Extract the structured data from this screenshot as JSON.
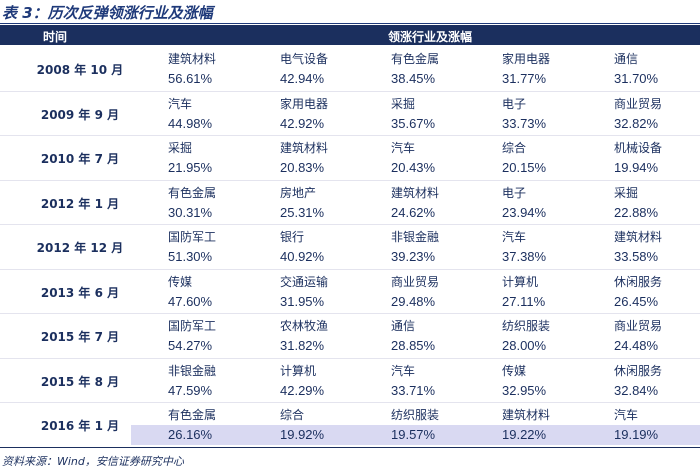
{
  "title": "表 3：历次反弹领涨行业及涨幅",
  "header": {
    "time": "时间",
    "leaders": "领涨行业及涨幅"
  },
  "rows": [
    {
      "date": "2008 年 10 月",
      "items": [
        {
          "name": "建筑材料",
          "value": "56.61%"
        },
        {
          "name": "电气设备",
          "value": "42.94%"
        },
        {
          "name": "有色金属",
          "value": "38.45%"
        },
        {
          "name": "家用电器",
          "value": "31.77%"
        },
        {
          "name": "通信",
          "value": "31.70%"
        }
      ]
    },
    {
      "date": "2009 年 9 月",
      "items": [
        {
          "name": "汽车",
          "value": "44.98%"
        },
        {
          "name": "家用电器",
          "value": "42.92%"
        },
        {
          "name": "采掘",
          "value": "35.67%"
        },
        {
          "name": "电子",
          "value": "33.73%"
        },
        {
          "name": "商业贸易",
          "value": "32.82%"
        }
      ]
    },
    {
      "date": "2010 年 7 月",
      "items": [
        {
          "name": "采掘",
          "value": "21.95%"
        },
        {
          "name": "建筑材料",
          "value": "20.83%"
        },
        {
          "name": "汽车",
          "value": "20.43%"
        },
        {
          "name": "综合",
          "value": "20.15%"
        },
        {
          "name": "机械设备",
          "value": "19.94%"
        }
      ]
    },
    {
      "date": "2012 年 1 月",
      "items": [
        {
          "name": "有色金属",
          "value": "30.31%"
        },
        {
          "name": "房地产",
          "value": "25.31%"
        },
        {
          "name": "建筑材料",
          "value": "24.62%"
        },
        {
          "name": "电子",
          "value": "23.94%"
        },
        {
          "name": "采掘",
          "value": "22.88%"
        }
      ]
    },
    {
      "date": "2012 年 12 月",
      "items": [
        {
          "name": "国防军工",
          "value": "51.30%"
        },
        {
          "name": "银行",
          "value": "40.92%"
        },
        {
          "name": "非银金融",
          "value": "39.23%"
        },
        {
          "name": "汽车",
          "value": "37.38%"
        },
        {
          "name": "建筑材料",
          "value": "33.58%"
        }
      ]
    },
    {
      "date": "2013 年 6 月",
      "items": [
        {
          "name": "传媒",
          "value": "47.60%"
        },
        {
          "name": "交通运输",
          "value": "31.95%"
        },
        {
          "name": "商业贸易",
          "value": "29.48%"
        },
        {
          "name": "计算机",
          "value": "27.11%"
        },
        {
          "name": "休闲服务",
          "value": "26.45%"
        }
      ]
    },
    {
      "date": "2015 年 7 月",
      "items": [
        {
          "name": "国防军工",
          "value": "54.27%"
        },
        {
          "name": "农林牧渔",
          "value": "31.82%"
        },
        {
          "name": "通信",
          "value": "28.85%"
        },
        {
          "name": "纺织服装",
          "value": "28.00%"
        },
        {
          "name": "商业贸易",
          "value": "24.48%"
        }
      ]
    },
    {
      "date": "2015 年 8 月",
      "items": [
        {
          "name": "非银金融",
          "value": "47.59%"
        },
        {
          "name": "计算机",
          "value": "42.29%"
        },
        {
          "name": "汽车",
          "value": "33.71%"
        },
        {
          "name": "传媒",
          "value": "32.95%"
        },
        {
          "name": "休闲服务",
          "value": "32.84%"
        }
      ]
    },
    {
      "date": "2016 年 1 月",
      "items": [
        {
          "name": "有色金属",
          "value": "26.16%"
        },
        {
          "name": "综合",
          "value": "19.92%"
        },
        {
          "name": "纺织服装",
          "value": "19.57%"
        },
        {
          "name": "建筑材料",
          "value": "19.22%"
        },
        {
          "name": "汽车",
          "value": "19.19%"
        }
      ]
    }
  ],
  "source": "资料来源：Wind，安信证券研究中心"
}
